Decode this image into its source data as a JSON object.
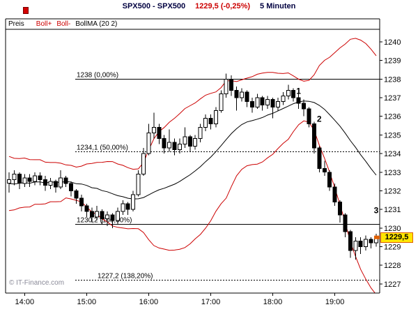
{
  "header": {
    "title_symbol": "SPX500 - SPX500",
    "title_quote": "1229,5 (-0,25%)",
    "title_timeframe": "5 Minuten",
    "legend": {
      "price_label": "Preis",
      "boll_plus": "Boll+",
      "boll_minus": "Boll-",
      "bollma": "BollMA (20 2)"
    }
  },
  "watermark": "© IT-Finance.com",
  "colors": {
    "band": "#cc0000",
    "ma": "#000000",
    "up_fill": "#ffffff",
    "down_fill": "#000000",
    "price_tag_bg": "#ffe600",
    "price_tag_border": "#e06000",
    "title_navy": "#000040",
    "quote_red": "#cc0000"
  },
  "chart_data": {
    "type": "candlestick",
    "title": "SPX500 - SPX500 1229,5 (-0,25%) 5 Minuten",
    "symbol": "SPX500",
    "timeframe": "5 Minuten",
    "legend_position": "top-left",
    "grid": false,
    "x_ticks": [
      "14:00",
      "15:00",
      "16:00",
      "17:00",
      "18:00",
      "19:00"
    ],
    "x_tick_bar_index": [
      3,
      15,
      27,
      39,
      51,
      63
    ],
    "y_ticks": [
      1240,
      1239,
      1238,
      1237,
      1236,
      1235,
      1234,
      1233,
      1232,
      1231,
      1230,
      1229,
      1228,
      1227
    ],
    "ylim": [
      1226.51,
      1240.67
    ],
    "indicators": {
      "bollinger": {
        "period": 20,
        "deviations": 2
      }
    },
    "indicator_warmup_closes": [
      1233.5,
      1231.5,
      1232.0,
      1233.2,
      1231.4,
      1232.6,
      1233.4,
      1231.6,
      1232.2,
      1233.0,
      1231.3,
      1232.8,
      1233.3,
      1231.5,
      1232.4,
      1233.1,
      1231.6,
      1232.9,
      1231.9
    ],
    "ohlc": [
      [
        1232.4,
        1233.0,
        1231.9,
        1232.6
      ],
      [
        1232.6,
        1233.1,
        1232.3,
        1232.9
      ],
      [
        1232.9,
        1233.0,
        1232.1,
        1232.4
      ],
      [
        1232.4,
        1232.9,
        1232.2,
        1232.7
      ],
      [
        1232.7,
        1232.9,
        1232.2,
        1232.5
      ],
      [
        1232.5,
        1233.0,
        1232.3,
        1232.8
      ],
      [
        1232.8,
        1233.0,
        1232.3,
        1232.6
      ],
      [
        1232.6,
        1232.8,
        1232.0,
        1232.3
      ],
      [
        1232.3,
        1232.7,
        1232.1,
        1232.5
      ],
      [
        1232.5,
        1232.6,
        1231.9,
        1232.2
      ],
      [
        1232.2,
        1233.1,
        1232.1,
        1232.7
      ],
      [
        1232.7,
        1232.8,
        1232.2,
        1232.4
      ],
      [
        1232.4,
        1232.5,
        1231.7,
        1232.0
      ],
      [
        1232.0,
        1232.1,
        1231.3,
        1231.6
      ],
      [
        1231.6,
        1231.8,
        1230.9,
        1231.2
      ],
      [
        1231.2,
        1231.3,
        1230.6,
        1230.9
      ],
      [
        1230.9,
        1231.1,
        1230.3,
        1230.6
      ],
      [
        1230.6,
        1231.2,
        1230.4,
        1230.9
      ],
      [
        1230.9,
        1231.0,
        1230.2,
        1230.5
      ],
      [
        1230.5,
        1230.9,
        1230.1,
        1230.7
      ],
      [
        1230.7,
        1230.8,
        1230.0,
        1230.4
      ],
      [
        1230.4,
        1231.1,
        1230.2,
        1230.9
      ],
      [
        1230.9,
        1231.5,
        1230.7,
        1231.3
      ],
      [
        1231.3,
        1231.4,
        1230.7,
        1231.0
      ],
      [
        1231.0,
        1232.0,
        1230.9,
        1231.8
      ],
      [
        1231.8,
        1233.1,
        1231.7,
        1232.9
      ],
      [
        1232.9,
        1234.3,
        1232.8,
        1234.0
      ],
      [
        1234.0,
        1235.6,
        1233.9,
        1235.1
      ],
      [
        1235.1,
        1236.2,
        1234.8,
        1235.4
      ],
      [
        1235.4,
        1235.6,
        1234.5,
        1234.8
      ],
      [
        1234.8,
        1235.0,
        1234.0,
        1234.3
      ],
      [
        1234.3,
        1235.3,
        1234.1,
        1234.6
      ],
      [
        1234.6,
        1234.8,
        1233.9,
        1234.2
      ],
      [
        1234.2,
        1234.8,
        1234.0,
        1234.5
      ],
      [
        1234.5,
        1235.4,
        1234.3,
        1234.9
      ],
      [
        1234.9,
        1235.0,
        1234.1,
        1234.4
      ],
      [
        1234.4,
        1235.0,
        1234.2,
        1234.8
      ],
      [
        1234.8,
        1235.6,
        1234.6,
        1235.4
      ],
      [
        1235.4,
        1236.1,
        1235.2,
        1235.9
      ],
      [
        1235.9,
        1236.1,
        1235.3,
        1235.6
      ],
      [
        1235.6,
        1236.5,
        1235.4,
        1236.3
      ],
      [
        1236.3,
        1237.4,
        1236.2,
        1237.2
      ],
      [
        1237.2,
        1238.3,
        1237.0,
        1238.0
      ],
      [
        1238.0,
        1238.2,
        1237.1,
        1237.4
      ],
      [
        1237.4,
        1237.6,
        1236.3,
        1237.0
      ],
      [
        1237.0,
        1237.5,
        1236.8,
        1237.3
      ],
      [
        1237.3,
        1237.4,
        1236.5,
        1236.8
      ],
      [
        1236.8,
        1237.0,
        1236.2,
        1236.5
      ],
      [
        1236.5,
        1237.2,
        1236.4,
        1237.0
      ],
      [
        1237.0,
        1237.1,
        1236.3,
        1236.6
      ],
      [
        1236.6,
        1237.1,
        1236.4,
        1236.9
      ],
      [
        1236.9,
        1237.0,
        1235.9,
        1236.5
      ],
      [
        1236.5,
        1237.0,
        1236.3,
        1236.8
      ],
      [
        1236.8,
        1237.3,
        1236.6,
        1237.1
      ],
      [
        1237.1,
        1237.7,
        1236.9,
        1237.4
      ],
      [
        1237.4,
        1237.5,
        1236.8,
        1237.0
      ],
      [
        1237.0,
        1237.2,
        1236.4,
        1236.7
      ],
      [
        1236.7,
        1236.9,
        1236.0,
        1236.4
      ],
      [
        1236.4,
        1236.5,
        1235.4,
        1235.6
      ],
      [
        1235.6,
        1235.7,
        1234.0,
        1234.3
      ],
      [
        1234.3,
        1234.4,
        1233.0,
        1233.2
      ],
      [
        1233.2,
        1233.6,
        1232.8,
        1233.0
      ],
      [
        1233.0,
        1233.1,
        1232.0,
        1232.2
      ],
      [
        1232.2,
        1232.4,
        1231.2,
        1231.4
      ],
      [
        1231.4,
        1231.5,
        1230.3,
        1230.7
      ],
      [
        1230.7,
        1230.8,
        1229.5,
        1229.8
      ],
      [
        1229.8,
        1229.9,
        1228.4,
        1228.8
      ],
      [
        1228.8,
        1229.5,
        1228.3,
        1229.3
      ],
      [
        1229.3,
        1229.5,
        1228.6,
        1229.0
      ],
      [
        1229.0,
        1229.6,
        1228.8,
        1229.4
      ],
      [
        1229.4,
        1229.5,
        1228.9,
        1229.2
      ],
      [
        1229.2,
        1229.7,
        1229.0,
        1229.5
      ]
    ],
    "fib_levels": [
      {
        "label": "1238 (0,00%)",
        "value": 1238.0,
        "dashed": false,
        "label_x": 110
      },
      {
        "label": "1234,1 (50,00%)",
        "value": 1234.1,
        "dashed": true,
        "label_x": 110
      },
      {
        "label": "1230,2 (100,00%)",
        "value": 1230.2,
        "dashed": false,
        "label_x": 110
      },
      {
        "label": "1227,2 (138,20%)",
        "value": 1227.2,
        "dashed": true,
        "label_x": 140
      }
    ],
    "annotations": [
      {
        "label": "1",
        "bar": 55,
        "price": 1237.2
      },
      {
        "label": "2",
        "bar": 59,
        "price": 1235.7
      },
      {
        "label": "3",
        "bar": 70,
        "price": 1230.8
      }
    ],
    "last_price": 1229.5,
    "last_price_label": "1229,5"
  }
}
